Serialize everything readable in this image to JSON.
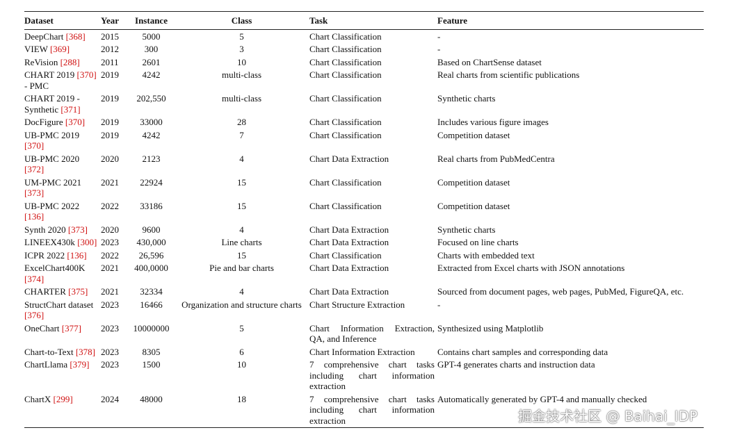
{
  "table": {
    "columns": [
      "Dataset",
      "Year",
      "Instance",
      "Class",
      "Task",
      "Feature"
    ],
    "rows": [
      {
        "dataset": "DeepChart",
        "cite": "[368]",
        "year": "2015",
        "instance": "5000",
        "class": "5",
        "task": "Chart Classification",
        "feature": "-"
      },
      {
        "dataset": "VIEW",
        "cite": "[369]",
        "year": "2012",
        "instance": "300",
        "class": "3",
        "task": "Chart Classification",
        "feature": "-"
      },
      {
        "dataset": "ReVision",
        "cite": "[288]",
        "year": "2011",
        "instance": "2601",
        "class": "10",
        "task": "Chart Classification",
        "feature": "Based on ChartSense dataset"
      },
      {
        "dataset": "CHART 2019",
        "cite": "[370]",
        "suffix": "- PMC",
        "year": "2019",
        "instance": "4242",
        "class": "multi-class",
        "task": "Chart Classification",
        "feature": "Real charts from scientific publications"
      },
      {
        "dataset": "CHART 2019 - Synthetic",
        "cite": "[371]",
        "year": "2019",
        "instance": "202,550",
        "class": "multi-class",
        "task": "Chart Classification",
        "feature": "Synthetic charts"
      },
      {
        "dataset": "DocFigure",
        "cite": "[370]",
        "year": "2019",
        "instance": "33000",
        "class": "28",
        "task": "Chart Classification",
        "feature": "Includes various figure images"
      },
      {
        "dataset": "UB-PMC 2019",
        "cite": "[370]",
        "year": "2019",
        "instance": "4242",
        "class": "7",
        "task": "Chart Classification",
        "feature": "Competition dataset"
      },
      {
        "dataset": "UB-PMC 2020",
        "cite": "[372]",
        "year": "2020",
        "instance": "2123",
        "class": "4",
        "task": "Chart Data Extraction",
        "feature": "Real charts from PubMedCentra"
      },
      {
        "dataset": "UM-PMC 2021",
        "cite": "[373]",
        "year": "2021",
        "instance": "22924",
        "class": "15",
        "task": "Chart Classification",
        "feature": "Competition dataset"
      },
      {
        "dataset": "UB-PMC 2022",
        "cite": "[136]",
        "year": "2022",
        "instance": "33186",
        "class": "15",
        "task": "Chart Classification",
        "feature": "Competition dataset"
      },
      {
        "dataset": "Synth 2020",
        "cite": "[373]",
        "year": "2020",
        "instance": "9600",
        "class": "4",
        "task": "Chart Data Extraction",
        "feature": "Synthetic charts"
      },
      {
        "dataset": "LINEEX430k",
        "cite": "[300]",
        "year": "2023",
        "instance": "430,000",
        "class": "Line charts",
        "task": "Chart Data Extraction",
        "feature": "Focused on line charts"
      },
      {
        "dataset": "ICPR 2022",
        "cite": "[136]",
        "year": "2022",
        "instance": "26,596",
        "class": "15",
        "task": "Chart Classification",
        "feature": "Charts with embedded text"
      },
      {
        "dataset": "ExcelChart400K",
        "cite": "[374]",
        "year": "2021",
        "instance": "400,0000",
        "class": "Pie and bar charts",
        "task": "Chart Data Extraction",
        "feature": "Extracted from Excel charts with JSON annotations"
      },
      {
        "dataset": "CHARTER",
        "cite": "[375]",
        "year": "2021",
        "instance": "32334",
        "class": "4",
        "task": "Chart Data Extraction",
        "feature": "Sourced from document pages, web pages, PubMed, FigureQA, etc."
      },
      {
        "dataset": "StructChart dataset",
        "cite": "[376]",
        "year": "2023",
        "instance": "16466",
        "class": "Organization and structure charts",
        "task": "Chart Structure Extraction",
        "feature": "-"
      },
      {
        "dataset": "OneChart",
        "cite": "[377]",
        "year": "2023",
        "instance": "10000000",
        "class": "5",
        "task": "Chart Information Extraction, QA, and Inference",
        "feature": "Synthesized using Matplotlib"
      },
      {
        "dataset": "Chart-to-Text",
        "cite": "[378]",
        "year": "2023",
        "instance": "8305",
        "class": "6",
        "task": "Chart Information Extraction",
        "feature": "Contains chart samples and corresponding data"
      },
      {
        "dataset": "ChartLlama",
        "cite": "[379]",
        "year": "2023",
        "instance": "1500",
        "class": "10",
        "task": "7 comprehensive chart tasks including chart information extraction",
        "feature": "GPT-4 generates charts and instruction data"
      },
      {
        "dataset": "ChartX",
        "cite": "[299]",
        "year": "2024",
        "instance": "48000",
        "class": "18",
        "task": "7 comprehensive chart tasks including chart information extraction",
        "feature": "Automatically generated by GPT-4 and manually checked"
      }
    ]
  },
  "watermark": "掘金技术社区 @ Baihai_IDP"
}
